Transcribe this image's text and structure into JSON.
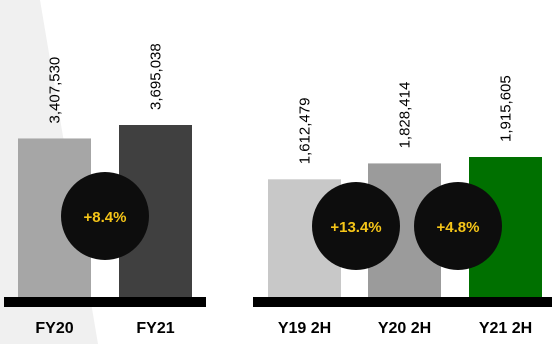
{
  "chart_data": [
    {
      "type": "bar",
      "categories": [
        "FY20",
        "FY21"
      ],
      "values": [
        3407530,
        3695038
      ],
      "value_labels": [
        "3,407,530",
        "3,695,038"
      ],
      "bar_colors": [
        "#a6a6a6",
        "#404040"
      ],
      "growth_badges": [
        {
          "between": [
            0,
            1
          ],
          "label": "+8.4%"
        }
      ]
    },
    {
      "type": "bar",
      "categories": [
        "Y19 2H",
        "Y20 2H",
        "Y21 2H"
      ],
      "values": [
        1612479,
        1828414,
        1915605
      ],
      "value_labels": [
        "1,612,479",
        "1,828,414",
        "1,915,605"
      ],
      "bar_colors": [
        "#c8c8c8",
        "#9b9b9b",
        "#007000"
      ],
      "growth_badges": [
        {
          "between": [
            0,
            1
          ],
          "label": "+13.4%"
        },
        {
          "between": [
            1,
            2
          ],
          "label": "+4.8%"
        }
      ]
    }
  ],
  "colors": {
    "badge_fill": "#0d0d0d",
    "badge_text": "#f5c518",
    "baseline": "#000000",
    "label_text": "#000000",
    "background_wedge": "#f0f0f0"
  }
}
